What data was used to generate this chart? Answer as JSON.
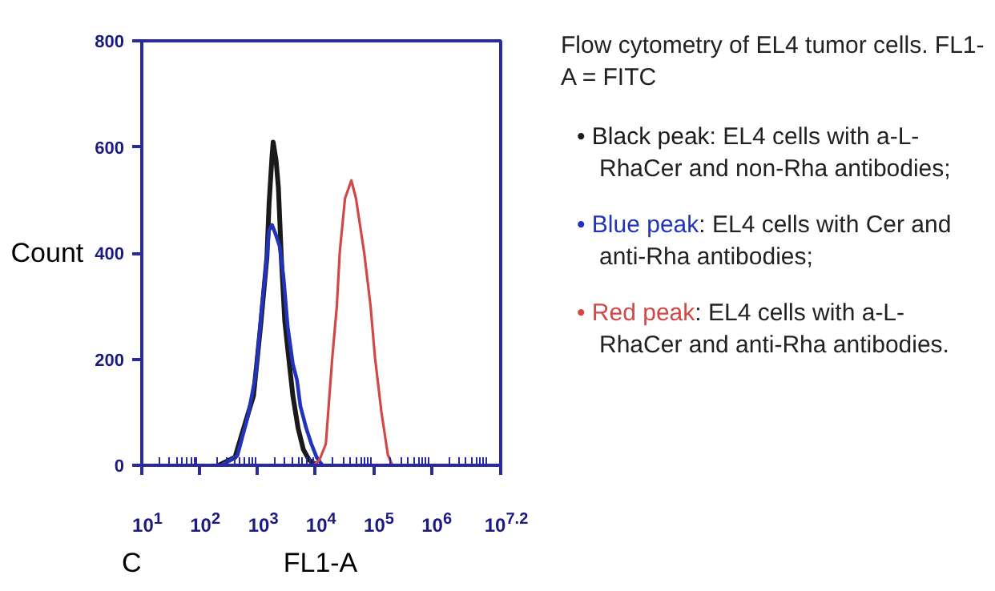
{
  "chart_data": {
    "type": "line",
    "title": "Flow cytometry of EL4 tumor cells. FL1-A = FITC",
    "xlabel": "FL1-A",
    "ylabel": "Count",
    "log": "x",
    "xlim": [
      10,
      15848932
    ],
    "xticks": [
      {
        "value": 10,
        "label": "10$^{1}$"
      },
      {
        "value": 100,
        "label": "10$^{2}$"
      },
      {
        "value": 1000,
        "label": "10$^{3}$"
      },
      {
        "value": 10000,
        "label": "10$^{4}$"
      },
      {
        "value": 100000,
        "label": "10$^{5}$"
      },
      {
        "value": 1000000,
        "label": "10$^{6}$"
      },
      {
        "value": 15848932,
        "label": "10$^{7.2}$"
      }
    ],
    "ylim": [
      0,
      800
    ],
    "yticks": [
      0,
      200,
      400,
      600,
      800
    ],
    "grid": false,
    "marker": "none",
    "line_style": "solid",
    "series": [
      {
        "color": "#1a1a1a",
        "x": [
          214,
          407,
          617,
          851,
          1150,
          1450,
          1580,
          1780,
          1860,
          2090,
          2290,
          2570,
          2950,
          3310,
          4070,
          5010,
          6170,
          7760,
          10500
        ],
        "values": [
          0,
          15,
          81,
          131,
          272,
          392,
          493,
          584,
          609,
          574,
          523,
          392,
          272,
          221,
          131,
          70,
          30,
          10,
          0
        ]
      },
      {
        "color": "#2233bb",
        "x": [
          240,
          447,
          676,
          933,
          1170,
          1450,
          1580,
          1780,
          2090,
          2400,
          2820,
          3310,
          4070,
          4790,
          5500,
          6920,
          8510,
          10500,
          13200
        ],
        "values": [
          0,
          18,
          91,
          171,
          292,
          392,
          443,
          453,
          433,
          413,
          352,
          262,
          191,
          161,
          111,
          70,
          40,
          15,
          0
        ]
      },
      {
        "color": "#d04848",
        "x": [
          9120,
          11700,
          15100,
          19500,
          23400,
          26300,
          32400,
          41700,
          50100,
          69200,
          89100,
          107000,
          138000,
          178000,
          214000
        ],
        "values": [
          0,
          10,
          40,
          202,
          300,
          402,
          503,
          537,
          503,
          402,
          302,
          202,
          100,
          20,
          0
        ]
      }
    ],
    "annotations": [
      "C",
      "• Black peak: EL4 cells with a-L-RhaCer and non-Rha antibodies;",
      "• Blue peak: EL4 cells with Cer and anti-Rha antibodies;",
      "• Red peak: EL4 cells with a-L-RhaCer and anti-Rha antibodies."
    ]
  }
}
